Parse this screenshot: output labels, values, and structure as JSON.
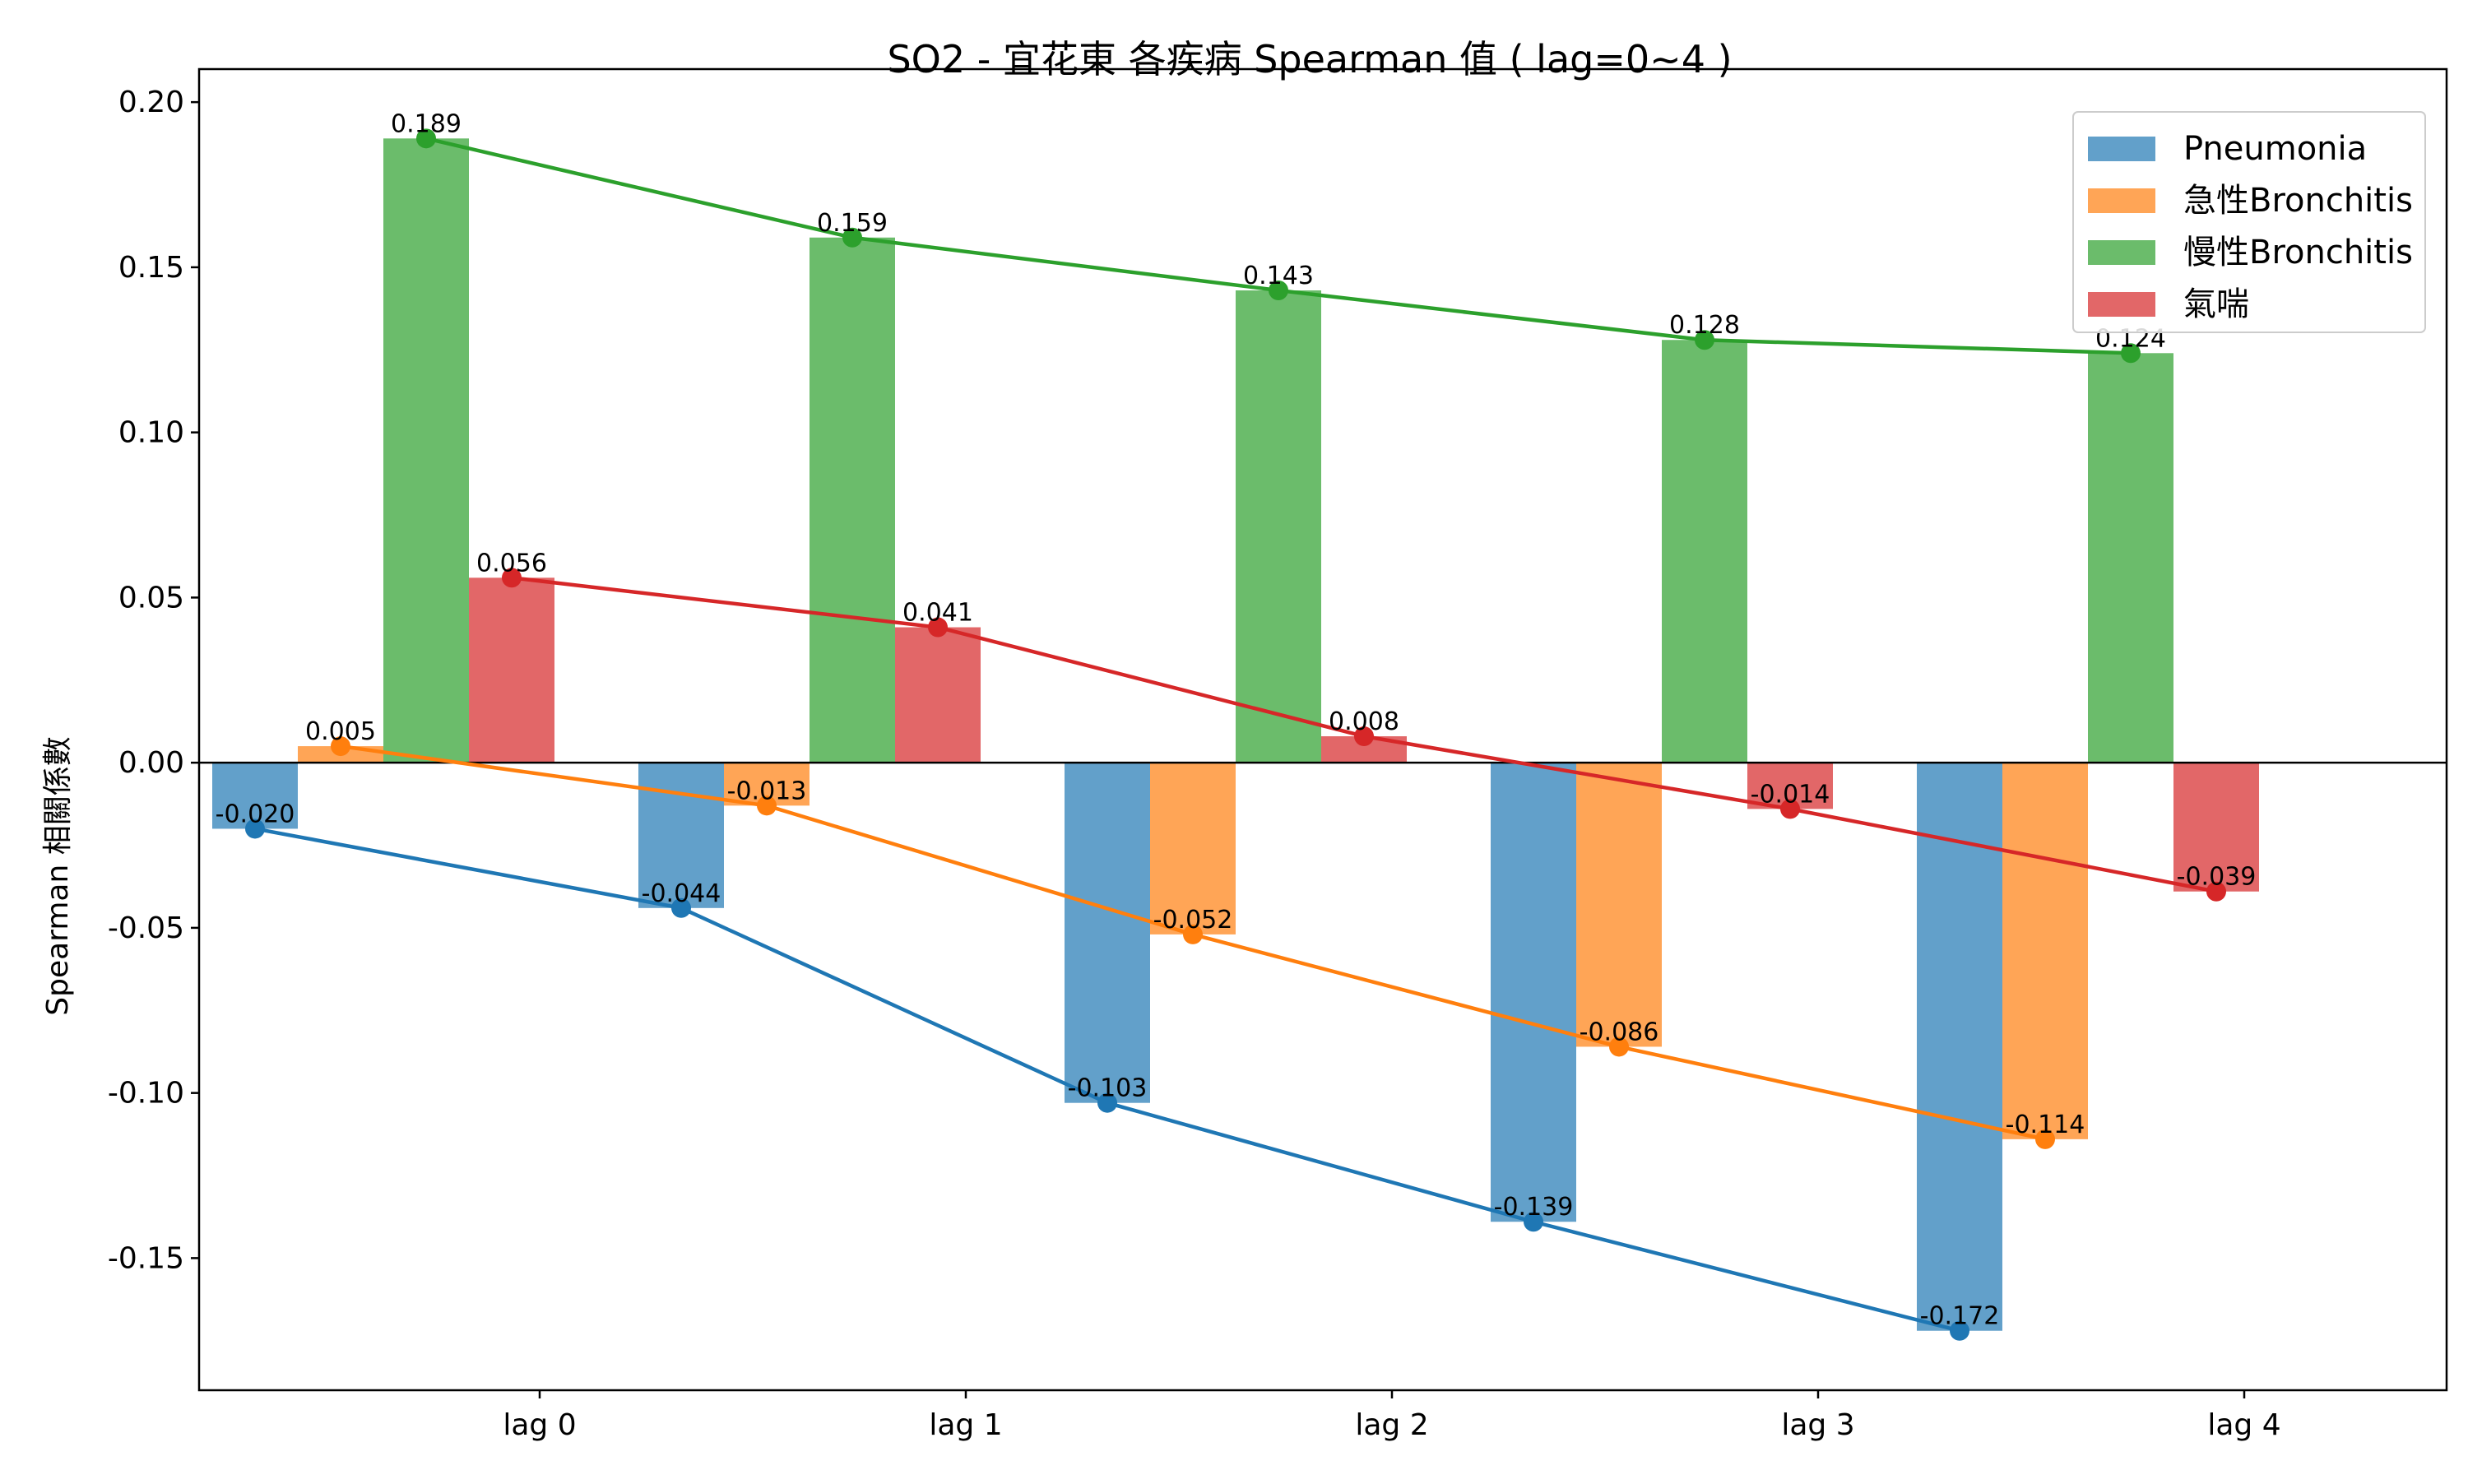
{
  "chart_data": {
    "type": "bar",
    "title": "SO2 - 宜花東 各疾病 Spearman 值 ( lag=0~4 )",
    "xlabel": "",
    "ylabel": "Spearman 相關係數",
    "categories": [
      "lag 0",
      "lag 1",
      "lag 2",
      "lag 3",
      "lag 4"
    ],
    "ylim": [
      -0.19,
      0.21
    ],
    "yticks": [
      0.2,
      0.15,
      0.1,
      0.05,
      0.0,
      -0.05,
      -0.1,
      -0.15
    ],
    "ytick_labels": [
      "0.20",
      "0.15",
      "0.10",
      "0.05",
      "0.00",
      "-0.05",
      "-0.10",
      "-0.15"
    ],
    "grid": false,
    "legend_position": "top-right",
    "overlay": "line with markers through bar centers for each series",
    "series": [
      {
        "name": "Pneumonia",
        "color": "#1f77b4",
        "values": [
          -0.02,
          -0.044,
          -0.103,
          -0.139,
          -0.172
        ],
        "labels": [
          "-0.020",
          "-0.044",
          "-0.103",
          "-0.139",
          "-0.172"
        ]
      },
      {
        "name": "急性Bronchitis",
        "color": "#ff7f0e",
        "values": [
          0.005,
          -0.013,
          -0.052,
          -0.086,
          -0.114
        ],
        "labels": [
          "0.005",
          "-0.013",
          "-0.052",
          "-0.086",
          "-0.114"
        ]
      },
      {
        "name": "慢性Bronchitis",
        "color": "#2ca02c",
        "values": [
          0.189,
          0.159,
          0.143,
          0.128,
          0.124
        ],
        "labels": [
          "0.189",
          "0.159",
          "0.143",
          "0.128",
          "0.124"
        ]
      },
      {
        "name": "氣喘",
        "color": "#d62728",
        "values": [
          0.056,
          0.041,
          0.008,
          -0.014,
          -0.039
        ],
        "labels": [
          "0.056",
          "0.041",
          "0.008",
          "-0.014",
          "-0.039"
        ]
      }
    ]
  }
}
